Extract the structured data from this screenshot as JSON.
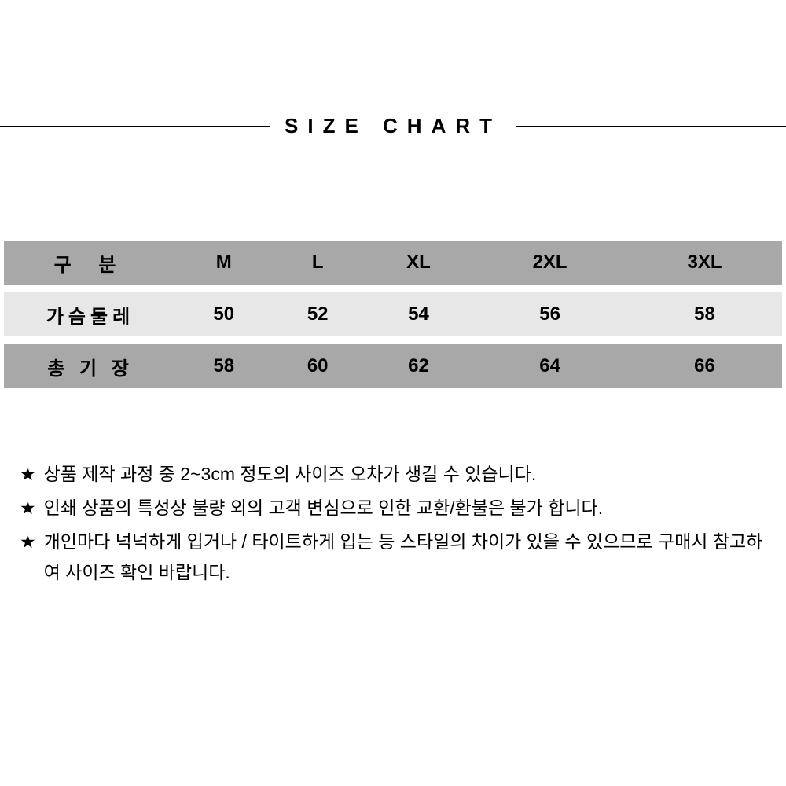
{
  "title": "SIZE CHART",
  "table": {
    "header_row_bg": "#a8a8a8",
    "alt_row_bg": "#e7e7e7",
    "text_color": "#000000",
    "columns_label": "구   분",
    "sizes": [
      "M",
      "L",
      "XL",
      "2XL",
      "3XL"
    ],
    "rows": [
      {
        "label": "가슴둘레",
        "values": [
          "50",
          "52",
          "54",
          "56",
          "58"
        ],
        "bg": "#e7e7e7"
      },
      {
        "label": "총 기 장",
        "values": [
          "58",
          "60",
          "62",
          "64",
          "66"
        ],
        "bg": "#a8a8a8"
      }
    ]
  },
  "notes": {
    "bullet": "★",
    "items": [
      "상품 제작 과정 중 2~3cm 정도의 사이즈 오차가 생길 수 있습니다.",
      "인쇄 상품의 특성상 불량 외의 고객 변심으로 인한 교환/환불은 불가 합니다.",
      "개인마다 넉넉하게 입거나 / 타이트하게 입는 등 스타일의 차이가 있을 수 있으므로 구매시 참고하여 사이즈 확인 바랍니다."
    ]
  },
  "style": {
    "background": "#ffffff",
    "title_fontsize": 26,
    "title_letter_spacing": 12,
    "table_fontsize": 24,
    "notes_fontsize": 23,
    "divider_color": "#000000"
  }
}
